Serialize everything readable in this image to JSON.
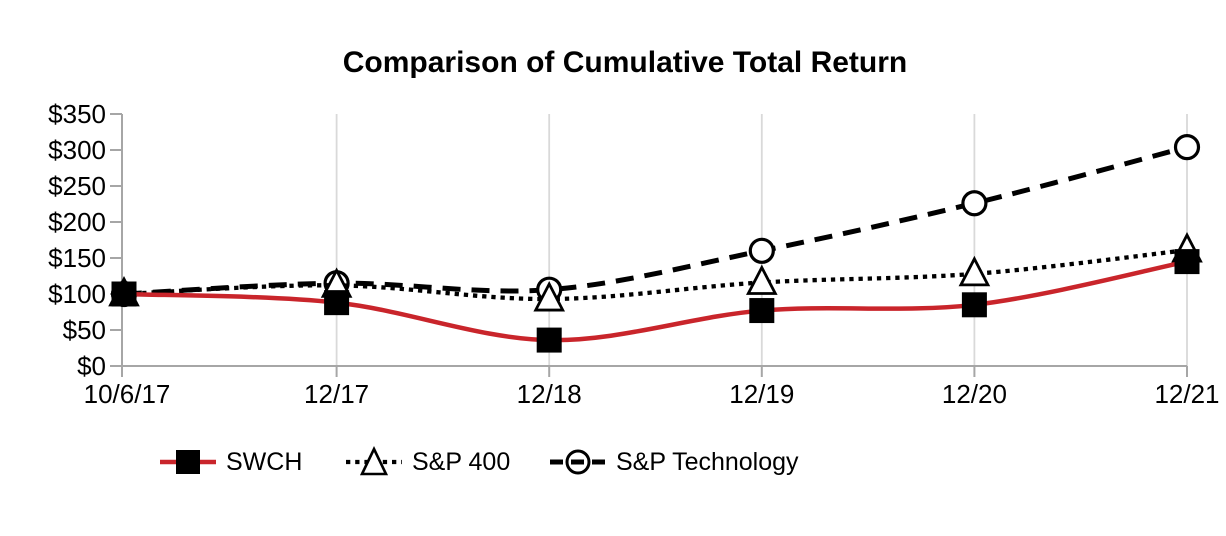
{
  "title": "Comparison of Cumulative Total Return",
  "chart_data": {
    "type": "line",
    "title": "Comparison of Cumulative Total Return",
    "categories": [
      "10/6/17",
      "12/17",
      "12/18",
      "12/19",
      "12/20",
      "12/21"
    ],
    "series": [
      {
        "name": "SWCH",
        "values": [
          100,
          88,
          36,
          77,
          85,
          145
        ],
        "line": "solid",
        "line_color": "#C9252B",
        "marker": "square",
        "marker_fill": "#000000",
        "marker_stroke": "#000000"
      },
      {
        "name": "S&P 400",
        "values": [
          100,
          112,
          93,
          116,
          128,
          161
        ],
        "line": "dotted",
        "line_color": "#000000",
        "marker": "triangle",
        "marker_fill": "#ffffff",
        "marker_stroke": "#000000"
      },
      {
        "name": "S&P Technology",
        "values": [
          100,
          115,
          106,
          160,
          226,
          304
        ],
        "line": "dashed",
        "line_color": "#000000",
        "marker": "circle",
        "marker_fill": "#ffffff",
        "marker_stroke": "#000000"
      }
    ],
    "ylim": [
      0,
      350
    ],
    "ytick_step": 50,
    "ytick_labels": [
      "$0",
      "$50",
      "$100",
      "$150",
      "$200",
      "$250",
      "$300",
      "$350"
    ],
    "xlabel": "",
    "ylabel": "",
    "grid": "vertical-only",
    "smoothed_lines": true,
    "legend_position": "bottom",
    "colors": {
      "axis": "#A6A6A6",
      "gridline": "#D9D9D9",
      "text": "#000000",
      "swch_red": "#C9252B",
      "background": "#ffffff"
    }
  }
}
